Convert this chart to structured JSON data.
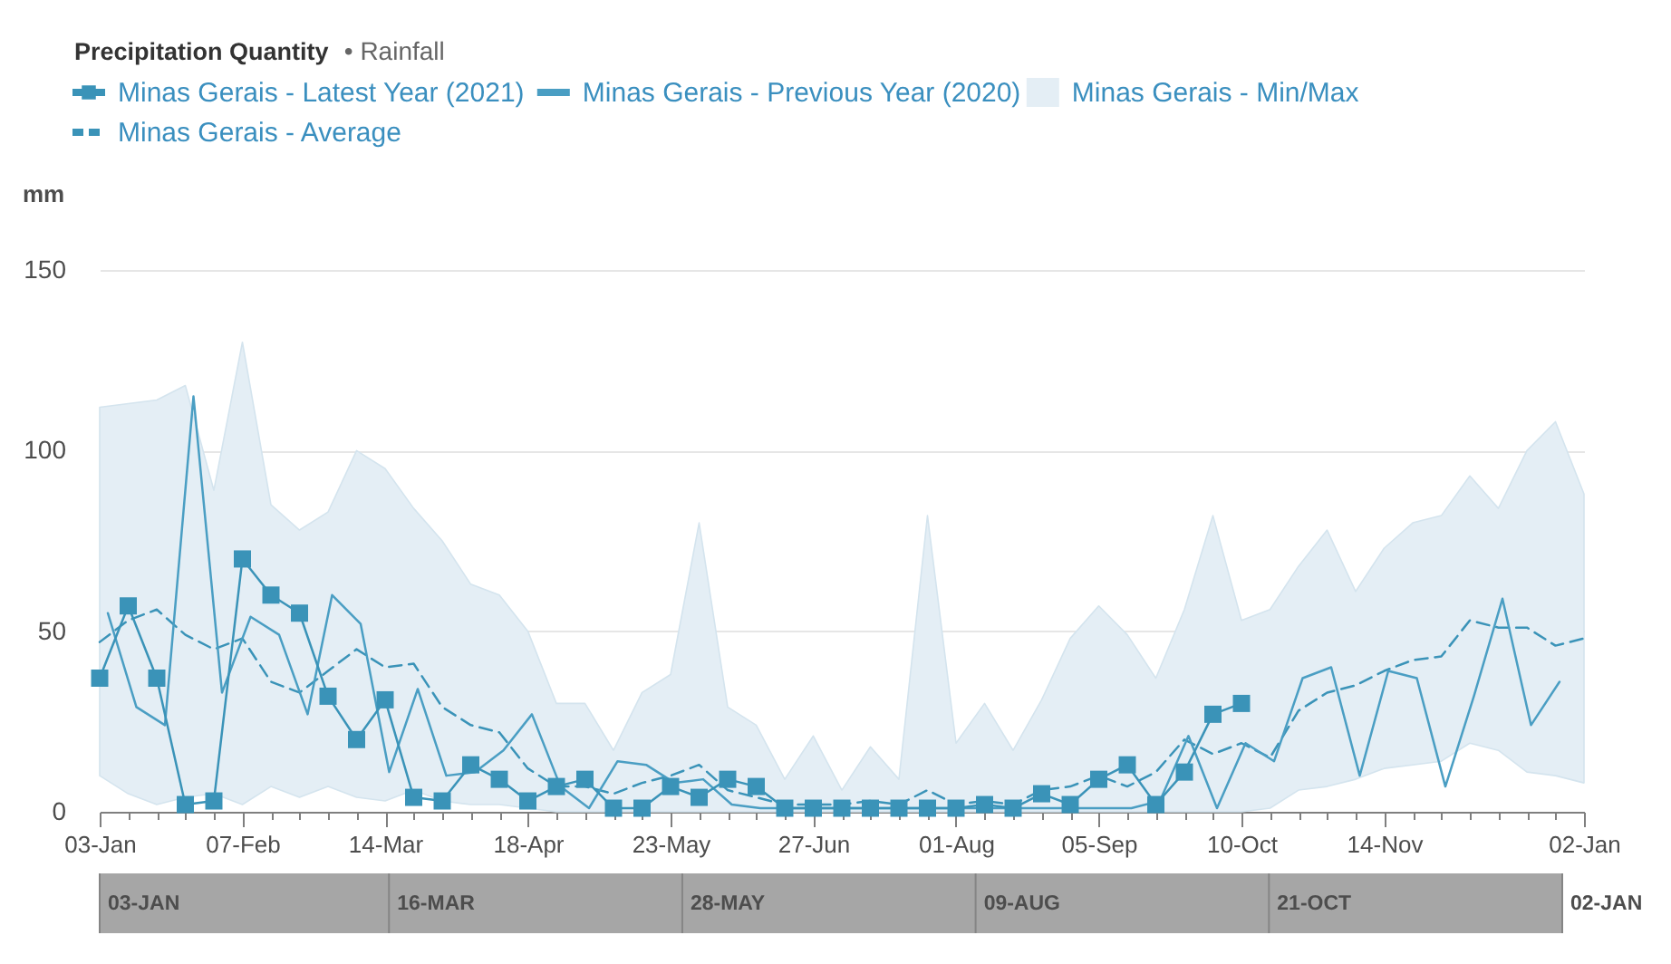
{
  "chart_data": {
    "type": "line",
    "title": "Precipitation Quantity",
    "subtitle": "• Rainfall",
    "ylabel": "mm",
    "x": [
      "2021-01-03",
      "2021-01-10",
      "2021-01-17",
      "2021-01-24",
      "2021-01-31",
      "2021-02-07",
      "2021-02-14",
      "2021-02-21",
      "2021-02-28",
      "2021-03-07",
      "2021-03-14",
      "2021-03-21",
      "2021-03-28",
      "2021-04-04",
      "2021-04-11",
      "2021-04-18",
      "2021-04-25",
      "2021-05-02",
      "2021-05-09",
      "2021-05-16",
      "2021-05-23",
      "2021-05-30",
      "2021-06-06",
      "2021-06-13",
      "2021-06-20",
      "2021-06-27",
      "2021-07-04",
      "2021-07-11",
      "2021-07-18",
      "2021-07-25",
      "2021-08-01",
      "2021-08-08",
      "2021-08-15",
      "2021-08-22",
      "2021-08-29",
      "2021-09-05",
      "2021-09-12",
      "2021-09-19",
      "2021-09-26",
      "2021-10-03",
      "2021-10-10",
      "2021-10-17",
      "2021-10-24",
      "2021-10-31",
      "2021-11-07",
      "2021-11-14",
      "2021-11-21",
      "2021-11-28",
      "2021-12-05",
      "2021-12-12",
      "2021-12-19",
      "2021-12-26",
      "2022-01-02"
    ],
    "series": [
      {
        "name": "Minas Gerais - Latest Year (2021)",
        "color": "#3a93b8",
        "marker": "square",
        "values": [
          37,
          57,
          37,
          2,
          3,
          70,
          60,
          55,
          32,
          20,
          31,
          4,
          3,
          13,
          9,
          3,
          7,
          9,
          1,
          1,
          7,
          4,
          9,
          7,
          1,
          1,
          1,
          1,
          1,
          1,
          1,
          2,
          1,
          5,
          2,
          9,
          13,
          2,
          11,
          27,
          30,
          null,
          null,
          null,
          null,
          null,
          null,
          null,
          null,
          null,
          null,
          null,
          null
        ]
      },
      {
        "name": "Minas Gerais - Previous Year (2020)",
        "color": "#4a9ec3",
        "x": [
          "2021-01-05",
          "2021-01-12",
          "2021-01-19",
          "2021-01-26",
          "2021-02-02",
          "2021-02-09",
          "2021-02-16",
          "2021-02-23",
          "2021-03-01",
          "2021-03-08",
          "2021-03-15",
          "2021-03-22",
          "2021-03-29",
          "2021-04-05",
          "2021-04-12",
          "2021-04-19",
          "2021-04-26",
          "2021-05-03",
          "2021-05-10",
          "2021-05-17",
          "2021-05-24",
          "2021-05-31",
          "2021-06-07",
          "2021-06-14",
          "2021-06-21",
          "2021-06-28",
          "2021-07-05",
          "2021-07-12",
          "2021-07-19",
          "2021-07-26",
          "2021-08-02",
          "2021-08-09",
          "2021-08-16",
          "2021-08-23",
          "2021-08-30",
          "2021-09-06",
          "2021-09-13",
          "2021-09-20",
          "2021-09-27",
          "2021-10-04",
          "2021-10-11",
          "2021-10-18",
          "2021-10-25",
          "2021-11-01",
          "2021-11-08",
          "2021-11-15",
          "2021-11-22",
          "2021-11-29",
          "2021-12-06",
          "2021-12-13",
          "2021-12-20",
          "2021-12-27"
        ],
        "values": [
          55,
          29,
          24,
          115,
          33,
          54,
          49,
          27,
          60,
          52,
          11,
          34,
          10,
          11,
          17,
          27,
          7,
          1,
          14,
          13,
          8,
          9,
          2,
          1,
          1,
          1,
          1,
          1,
          1,
          1,
          1,
          1,
          1,
          1,
          1,
          1,
          1,
          3,
          21,
          1,
          19,
          14,
          37,
          40,
          10,
          39,
          37,
          7,
          32,
          59,
          24,
          36
        ]
      },
      {
        "name": "Minas Gerais - Min/Max",
        "type": "area",
        "color": "#e4eef5",
        "values": [
          null,
          null,
          null,
          null,
          null,
          null,
          null,
          null,
          null,
          null,
          null,
          null,
          null,
          null,
          null,
          null,
          null,
          null,
          null,
          null,
          null,
          null,
          null,
          null,
          null,
          null,
          null,
          null,
          null,
          null,
          null,
          null,
          null,
          null,
          null,
          null,
          null,
          null,
          null,
          null,
          null,
          null,
          null,
          null,
          null,
          null,
          null,
          null,
          null,
          null,
          null,
          null,
          null
        ],
        "lower": [
          10,
          5,
          2,
          4,
          5,
          2,
          7,
          4,
          7,
          4,
          3,
          6,
          3,
          2,
          2,
          1,
          0,
          0,
          0,
          0,
          0,
          0,
          0,
          0,
          0,
          0,
          0,
          0,
          0,
          0,
          0,
          0,
          0,
          0,
          0,
          0,
          0,
          0,
          0,
          0,
          0,
          1,
          6,
          7,
          9,
          12,
          13,
          14,
          19,
          17,
          11,
          10,
          8
        ],
        "upper": [
          112,
          113,
          114,
          118,
          89,
          130,
          85,
          78,
          83,
          100,
          95,
          84,
          75,
          63,
          60,
          50,
          30,
          30,
          17,
          33,
          38,
          80,
          29,
          24,
          9,
          21,
          6,
          18,
          9,
          82,
          19,
          30,
          17,
          31,
          48,
          57,
          49,
          37,
          56,
          82,
          53,
          56,
          68,
          78,
          61,
          73,
          80,
          82,
          93,
          84,
          100,
          108,
          88
        ]
      },
      {
        "name": "Minas Gerais - Average",
        "color": "#3a93b8",
        "line_style": "dashed",
        "values": [
          47,
          53,
          56,
          49,
          45,
          48,
          36,
          33,
          39,
          45,
          40,
          41,
          29,
          24,
          22,
          12,
          7,
          7,
          5,
          8,
          10,
          13,
          6,
          4,
          2,
          2,
          2,
          3,
          2,
          6,
          2,
          3,
          2,
          6,
          7,
          10,
          7,
          11,
          20,
          16,
          19,
          15,
          28,
          33,
          35,
          39,
          42,
          43,
          53,
          51,
          51,
          46,
          48
        ]
      }
    ],
    "xlim": [
      "2021-01-03",
      "2022-01-02"
    ],
    "xticks": [
      {
        "value": "2021-01-03",
        "label": "03-Jan"
      },
      {
        "value": "2021-01-10",
        "label": null
      },
      {
        "value": "2021-01-17",
        "label": null
      },
      {
        "value": "2021-01-24",
        "label": null
      },
      {
        "value": "2021-01-31",
        "label": null
      },
      {
        "value": "2021-02-07",
        "label": "07-Feb"
      },
      {
        "value": "2021-02-14",
        "label": null
      },
      {
        "value": "2021-02-21",
        "label": null
      },
      {
        "value": "2021-02-28",
        "label": null
      },
      {
        "value": "2021-03-07",
        "label": null
      },
      {
        "value": "2021-03-14",
        "label": "14-Mar"
      },
      {
        "value": "2021-03-21",
        "label": null
      },
      {
        "value": "2021-03-28",
        "label": null
      },
      {
        "value": "2021-04-04",
        "label": null
      },
      {
        "value": "2021-04-11",
        "label": null
      },
      {
        "value": "2021-04-18",
        "label": "18-Apr"
      },
      {
        "value": "2021-04-25",
        "label": null
      },
      {
        "value": "2021-05-02",
        "label": null
      },
      {
        "value": "2021-05-09",
        "label": null
      },
      {
        "value": "2021-05-16",
        "label": null
      },
      {
        "value": "2021-05-23",
        "label": "23-May"
      },
      {
        "value": "2021-05-30",
        "label": null
      },
      {
        "value": "2021-06-06",
        "label": null
      },
      {
        "value": "2021-06-13",
        "label": null
      },
      {
        "value": "2021-06-20",
        "label": null
      },
      {
        "value": "2021-06-27",
        "label": "27-Jun"
      },
      {
        "value": "2021-07-04",
        "label": null
      },
      {
        "value": "2021-07-11",
        "label": null
      },
      {
        "value": "2021-07-18",
        "label": null
      },
      {
        "value": "2021-07-25",
        "label": null
      },
      {
        "value": "2021-08-01",
        "label": "01-Aug"
      },
      {
        "value": "2021-08-08",
        "label": null
      },
      {
        "value": "2021-08-15",
        "label": null
      },
      {
        "value": "2021-08-22",
        "label": null
      },
      {
        "value": "2021-08-29",
        "label": null
      },
      {
        "value": "2021-09-05",
        "label": "05-Sep"
      },
      {
        "value": "2021-09-12",
        "label": null
      },
      {
        "value": "2021-09-19",
        "label": null
      },
      {
        "value": "2021-09-26",
        "label": null
      },
      {
        "value": "2021-10-03",
        "label": null
      },
      {
        "value": "2021-10-10",
        "label": "10-Oct"
      },
      {
        "value": "2021-10-17",
        "label": null
      },
      {
        "value": "2021-10-24",
        "label": null
      },
      {
        "value": "2021-10-31",
        "label": null
      },
      {
        "value": "2021-11-07",
        "label": null
      },
      {
        "value": "2021-11-14",
        "label": "14-Nov"
      },
      {
        "value": "2021-11-21",
        "label": null
      },
      {
        "value": "2021-11-28",
        "label": null
      },
      {
        "value": "2021-12-05",
        "label": null
      },
      {
        "value": "2021-12-12",
        "label": null
      },
      {
        "value": "2021-12-19",
        "label": null
      },
      {
        "value": "2021-12-26",
        "label": null
      },
      {
        "value": "2022-01-02",
        "label": "02-Jan"
      }
    ],
    "ylim": [
      0,
      150
    ],
    "yticks": [
      0,
      50,
      100,
      150
    ],
    "x2lim": [
      "2021-01-03",
      "2022-01-02"
    ],
    "x2ticks": [
      {
        "value": "2021-01-03",
        "label": "03-JAN"
      },
      {
        "value": "2021-03-16",
        "label": "16-MAR"
      },
      {
        "value": "2021-05-28",
        "label": "28-MAY"
      },
      {
        "value": "2021-08-09",
        "label": "09-AUG"
      },
      {
        "value": "2021-10-21",
        "label": "21-OCT"
      },
      {
        "value": "2022-01-02",
        "label": "02-JAN"
      }
    ],
    "grid": "y",
    "legend": "top left"
  }
}
